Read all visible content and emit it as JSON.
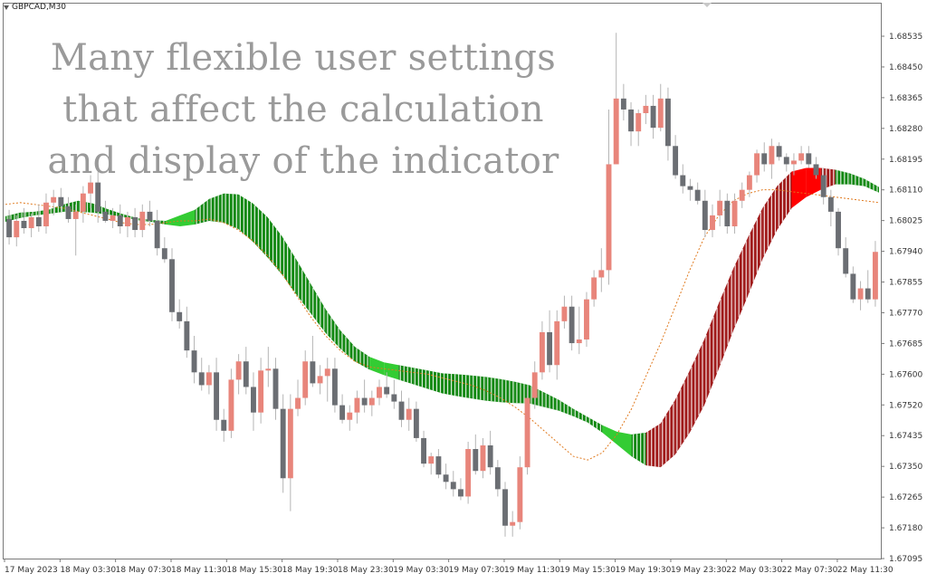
{
  "chart_data": {
    "type": "candlestick",
    "symbol": "GBPCAD,M30",
    "annotation": [
      "Many flexible user settings",
      "that affect the calculation",
      "and display of the indicator"
    ],
    "y_ticks": [
      "1.68535",
      "1.68450",
      "1.68365",
      "1.68280",
      "1.68195",
      "1.68110",
      "1.68025",
      "1.67940",
      "1.67855",
      "1.67770",
      "1.67685",
      "1.67600",
      "1.67520",
      "1.67435",
      "1.67350",
      "1.67265",
      "1.67180",
      "1.67095"
    ],
    "ylim": [
      1.6707,
      1.6859
    ],
    "x_ticks": [
      "17 May 2023",
      "18 May 03:30",
      "18 May 07:30",
      "18 May 11:30",
      "18 May 15:30",
      "18 May 19:30",
      "18 May 23:30",
      "19 May 03:30",
      "19 May 07:30",
      "19 May 11:30",
      "19 May 15:30",
      "19 May 19:30",
      "19 May 23:30",
      "22 May 03:30",
      "22 May 07:30",
      "22 May 11:30"
    ],
    "colors": {
      "bull_candle": "#e8857b",
      "bear_candle": "#6b6e73",
      "wick": "#b5b5b5",
      "band_up": "#118811",
      "band_up_bright": "#33cc33",
      "band_down": "#a01a1a",
      "band_down_bright": "#ff0000",
      "dotted_line": "#e07a1f"
    },
    "grid": false,
    "candles": [
      [
        1.68,
        1.68025,
        1.6793,
        1.6795
      ],
      [
        1.6795,
        1.6801,
        1.67925,
        1.67995
      ],
      [
        1.67995,
        1.6803,
        1.6796,
        1.67975
      ],
      [
        1.67975,
        1.68015,
        1.6795,
        1.68005
      ],
      [
        1.68005,
        1.6804,
        1.67965,
        1.6798
      ],
      [
        1.6798,
        1.6807,
        1.6796,
        1.68045
      ],
      [
        1.68045,
        1.6808,
        1.6801,
        1.6806
      ],
      [
        1.6806,
        1.68085,
        1.6802,
        1.68035
      ],
      [
        1.68035,
        1.6806,
        1.6799,
        1.68
      ],
      [
        1.68,
        1.6804,
        1.679,
        1.6802
      ],
      [
        1.6802,
        1.6809,
        1.6799,
        1.6807
      ],
      [
        1.6807,
        1.6812,
        1.6803,
        1.681
      ],
      [
        1.681,
        1.6813,
        1.6799,
        1.6802
      ],
      [
        1.6802,
        1.6805,
        1.6799,
        1.67995
      ],
      [
        1.67995,
        1.6803,
        1.67975,
        1.6801
      ],
      [
        1.6801,
        1.6804,
        1.6796,
        1.6798
      ],
      [
        1.6798,
        1.6802,
        1.6795,
        1.68005
      ],
      [
        1.68005,
        1.6803,
        1.6795,
        1.6797
      ],
      [
        1.6797,
        1.6804,
        1.6795,
        1.6802
      ],
      [
        1.6802,
        1.6805,
        1.6798,
        1.67995
      ],
      [
        1.67995,
        1.68025,
        1.679,
        1.6792
      ],
      [
        1.6792,
        1.6795,
        1.6788,
        1.6789
      ],
      [
        1.6789,
        1.6792,
        1.6772,
        1.67745
      ],
      [
        1.67745,
        1.6778,
        1.677,
        1.6772
      ],
      [
        1.6772,
        1.6776,
        1.6762,
        1.6764
      ],
      [
        1.6764,
        1.6768,
        1.6755,
        1.6758
      ],
      [
        1.6758,
        1.6762,
        1.6753,
        1.67545
      ],
      [
        1.67545,
        1.676,
        1.6752,
        1.6758
      ],
      [
        1.6758,
        1.6762,
        1.6742,
        1.6745
      ],
      [
        1.6745,
        1.6748,
        1.6739,
        1.6742
      ],
      [
        1.6742,
        1.6759,
        1.674,
        1.6756
      ],
      [
        1.6756,
        1.6763,
        1.6752,
        1.6761
      ],
      [
        1.6761,
        1.6765,
        1.6752,
        1.6754
      ],
      [
        1.6754,
        1.6758,
        1.6742,
        1.6747
      ],
      [
        1.6747,
        1.6762,
        1.6744,
        1.67585
      ],
      [
        1.67585,
        1.6765,
        1.6754,
        1.6759
      ],
      [
        1.6759,
        1.6762,
        1.6745,
        1.6748
      ],
      [
        1.6748,
        1.6752,
        1.6725,
        1.6729
      ],
      [
        1.6729,
        1.6752,
        1.672,
        1.6748
      ],
      [
        1.6748,
        1.6756,
        1.6746,
        1.6751
      ],
      [
        1.6751,
        1.6764,
        1.6749,
        1.6761
      ],
      [
        1.6761,
        1.6768,
        1.6754,
        1.6755
      ],
      [
        1.6755,
        1.676,
        1.6752,
        1.6757
      ],
      [
        1.6757,
        1.6762,
        1.675,
        1.6759
      ],
      [
        1.6759,
        1.6762,
        1.6747,
        1.6749
      ],
      [
        1.6749,
        1.6752,
        1.6744,
        1.6745
      ],
      [
        1.6745,
        1.6749,
        1.6742,
        1.6747
      ],
      [
        1.6747,
        1.6753,
        1.6744,
        1.6751
      ],
      [
        1.6751,
        1.6756,
        1.6747,
        1.6749
      ],
      [
        1.6749,
        1.6753,
        1.6746,
        1.6751
      ],
      [
        1.6751,
        1.6756,
        1.6749,
        1.6754
      ],
      [
        1.6754,
        1.6758,
        1.6751,
        1.6752
      ],
      [
        1.6752,
        1.6756,
        1.6748,
        1.675
      ],
      [
        1.675,
        1.6753,
        1.6743,
        1.6745
      ],
      [
        1.6745,
        1.6751,
        1.6742,
        1.6748
      ],
      [
        1.6748,
        1.675,
        1.6739,
        1.674
      ],
      [
        1.674,
        1.6742,
        1.6732,
        1.6733
      ],
      [
        1.6733,
        1.6736,
        1.673,
        1.6735
      ],
      [
        1.6735,
        1.6737,
        1.6729,
        1.673
      ],
      [
        1.673,
        1.6733,
        1.6726,
        1.6728
      ],
      [
        1.6728,
        1.6731,
        1.6724,
        1.6726
      ],
      [
        1.6726,
        1.6729,
        1.6723,
        1.6724
      ],
      [
        1.6724,
        1.6739,
        1.6722,
        1.6737
      ],
      [
        1.6737,
        1.6741,
        1.673,
        1.6731
      ],
      [
        1.6731,
        1.674,
        1.6729,
        1.6738
      ],
      [
        1.6738,
        1.6742,
        1.673,
        1.6732
      ],
      [
        1.6732,
        1.6734,
        1.6724,
        1.6726
      ],
      [
        1.6726,
        1.6728,
        1.6713,
        1.6716
      ],
      [
        1.6716,
        1.672,
        1.6713,
        1.6717
      ],
      [
        1.6717,
        1.6735,
        1.6715,
        1.6732
      ],
      [
        1.6732,
        1.6754,
        1.673,
        1.6751
      ],
      [
        1.6751,
        1.6761,
        1.6748,
        1.6758
      ],
      [
        1.6758,
        1.6772,
        1.6756,
        1.6769
      ],
      [
        1.6769,
        1.6775,
        1.6758,
        1.676
      ],
      [
        1.676,
        1.6775,
        1.6756,
        1.6772
      ],
      [
        1.6772,
        1.6779,
        1.677,
        1.6776
      ],
      [
        1.6776,
        1.6779,
        1.6764,
        1.6766
      ],
      [
        1.6766,
        1.6776,
        1.6763,
        1.6767
      ],
      [
        1.6767,
        1.678,
        1.6765,
        1.6778
      ],
      [
        1.6778,
        1.6786,
        1.6776,
        1.6784
      ],
      [
        1.6784,
        1.6792,
        1.678,
        1.6786
      ],
      [
        1.6786,
        1.683,
        1.6782,
        1.6815
      ],
      [
        1.6815,
        1.6851,
        1.6815,
        1.6833
      ],
      [
        1.6833,
        1.6837,
        1.6827,
        1.683
      ],
      [
        1.683,
        1.6832,
        1.682,
        1.6824
      ],
      [
        1.6824,
        1.683,
        1.682,
        1.6829
      ],
      [
        1.6829,
        1.6834,
        1.6826,
        1.6831
      ],
      [
        1.6831,
        1.6834,
        1.6822,
        1.6825
      ],
      [
        1.6825,
        1.6837,
        1.6824,
        1.6833
      ],
      [
        1.6833,
        1.6836,
        1.6816,
        1.682
      ],
      [
        1.682,
        1.6823,
        1.6811,
        1.6812
      ],
      [
        1.6812,
        1.6815,
        1.6807,
        1.6809
      ],
      [
        1.6809,
        1.6811,
        1.6805,
        1.6808
      ],
      [
        1.6808,
        1.681,
        1.6804,
        1.6805
      ],
      [
        1.6805,
        1.6808,
        1.6795,
        1.6797
      ],
      [
        1.6797,
        1.6804,
        1.6795,
        1.6801
      ],
      [
        1.6801,
        1.6808,
        1.6798,
        1.6805
      ],
      [
        1.6805,
        1.6807,
        1.6796,
        1.6798
      ],
      [
        1.6798,
        1.6807,
        1.6796,
        1.6805
      ],
      [
        1.6805,
        1.681,
        1.6803,
        1.6808
      ],
      [
        1.6808,
        1.6813,
        1.6806,
        1.6812
      ],
      [
        1.6812,
        1.6819,
        1.681,
        1.6818
      ],
      [
        1.6818,
        1.6821,
        1.6813,
        1.6815
      ],
      [
        1.6815,
        1.6822,
        1.6811,
        1.682
      ],
      [
        1.682,
        1.6821,
        1.6816,
        1.6817
      ],
      [
        1.6817,
        1.6818,
        1.6813,
        1.6815
      ],
      [
        1.6815,
        1.6818,
        1.6812,
        1.6816
      ],
      [
        1.6816,
        1.682,
        1.6815,
        1.6818
      ],
      [
        1.6818,
        1.682,
        1.6814,
        1.6815
      ],
      [
        1.6815,
        1.6817,
        1.6811,
        1.6812
      ],
      [
        1.6812,
        1.6814,
        1.6804,
        1.6806
      ],
      [
        1.6806,
        1.6808,
        1.6798,
        1.6802
      ],
      [
        1.6802,
        1.6803,
        1.679,
        1.6792
      ],
      [
        1.6792,
        1.6795,
        1.6784,
        1.6785
      ],
      [
        1.6785,
        1.6787,
        1.6777,
        1.6778
      ],
      [
        1.6778,
        1.6783,
        1.6775,
        1.6781
      ],
      [
        1.6781,
        1.6786,
        1.6777,
        1.6778
      ],
      [
        1.6778,
        1.6794,
        1.6776,
        1.6791
      ]
    ],
    "indicator": {
      "mid": [
        1.68,
        1.6801,
        1.68015,
        1.6802,
        1.6803,
        1.68035,
        1.6803,
        1.6802,
        1.6801,
        1.68,
        1.67995,
        1.6799,
        1.67995,
        1.68005,
        1.68025,
        1.6803,
        1.6802,
        1.6799,
        1.6795,
        1.679,
        1.6784,
        1.6778,
        1.6772,
        1.6767,
        1.6763,
        1.67605,
        1.6759,
        1.6758,
        1.6757,
        1.6756,
        1.6755,
        1.67545,
        1.6754,
        1.67535,
        1.6753,
        1.67525,
        1.6752,
        1.67505,
        1.6749,
        1.6747,
        1.6745,
        1.67425,
        1.674,
        1.6738,
        1.6737,
        1.6738,
        1.6743,
        1.675,
        1.6758,
        1.6768,
        1.6778,
        1.6787,
        1.6796,
        1.6803,
        1.6808,
        1.681,
        1.6811,
        1.68115,
        1.6811,
        1.681,
        1.6808
      ],
      "width": [
        0.00015,
        0.00015,
        0.0001,
        0.00012,
        0.0002,
        0.0003,
        0.00025,
        0.00015,
        8e-05,
        6e-05,
        5e-05,
        0.0001,
        0.0003,
        0.0004,
        0.0006,
        0.0008,
        0.00095,
        0.00105,
        0.0011,
        0.00105,
        0.00095,
        0.0008,
        0.00065,
        0.0005,
        0.0004,
        0.00035,
        0.00035,
        0.0004,
        0.00045,
        0.0005,
        0.00055,
        0.0006,
        0.00063,
        0.00065,
        0.00063,
        0.00058,
        0.0005,
        0.0004,
        0.0003,
        0.0002,
        0.00015,
        0.0002,
        0.00035,
        0.0006,
        0.0009,
        0.0012,
        0.0015,
        0.0017,
        0.0018,
        0.0018,
        0.0017,
        0.0016,
        0.0014,
        0.0012,
        0.001,
        0.0008,
        0.0006,
        0.0004,
        0.0003,
        0.0002,
        0.00015
      ],
      "dotted": [
        1.6804,
        1.68045,
        1.6804,
        1.68035,
        1.6803,
        1.6802,
        1.6801,
        1.68,
        1.6799,
        1.67985,
        1.67985,
        1.6799,
        1.67995,
        1.67995,
        1.68,
        1.6799,
        1.6797,
        1.6794,
        1.679,
        1.6785,
        1.6779,
        1.6773,
        1.6768,
        1.6764,
        1.6761,
        1.67595,
        1.6759,
        1.67585,
        1.6758,
        1.67575,
        1.67565,
        1.67555,
        1.67545,
        1.6753,
        1.6751,
        1.67485,
        1.67455,
        1.6742,
        1.67385,
        1.6735,
        1.6734,
        1.6736,
        1.6741,
        1.6748,
        1.6757,
        1.6766,
        1.6776,
        1.6786,
        1.6795,
        1.6801,
        1.6805,
        1.6807,
        1.6808,
        1.6808,
        1.68075,
        1.6807,
        1.68065,
        1.6806,
        1.68055,
        1.6805,
        1.68045
      ]
    }
  }
}
